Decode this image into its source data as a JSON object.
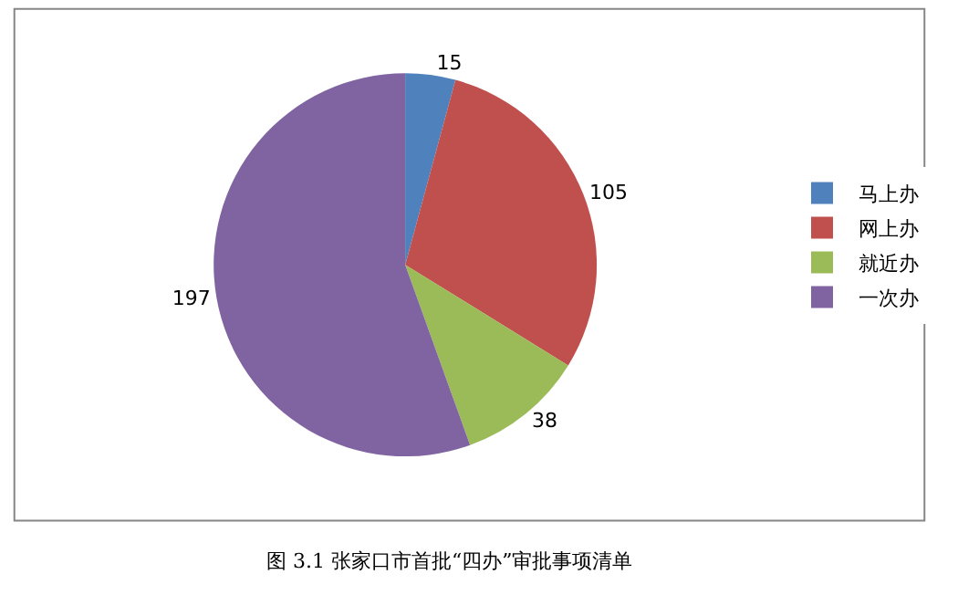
{
  "chart_data": {
    "type": "pie",
    "categories": [
      "马上办",
      "网上办",
      "就近办",
      "一次办"
    ],
    "values": [
      15,
      105,
      38,
      197
    ],
    "colors": [
      "#4f81bd",
      "#c0504d",
      "#9bbb59",
      "#8064a2"
    ],
    "data_labels": true,
    "legend": "right",
    "annotations": [
      "图 3.1 张家口市首批“四办”审批事项清单"
    ]
  }
}
